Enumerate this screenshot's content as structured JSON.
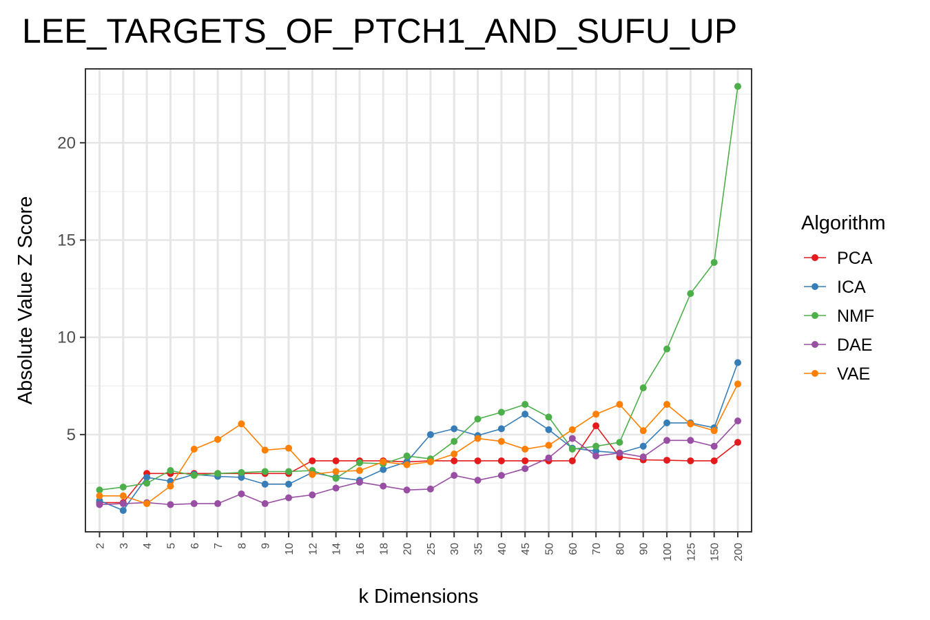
{
  "chart_data": {
    "type": "line",
    "title": "LEE_TARGETS_OF_PTCH1_AND_SUFU_UP",
    "xlabel": "k Dimensions",
    "ylabel": "Absolute Value Z Score",
    "categories": [
      "2",
      "3",
      "4",
      "5",
      "6",
      "7",
      "8",
      "9",
      "10",
      "12",
      "14",
      "16",
      "18",
      "20",
      "25",
      "30",
      "35",
      "40",
      "45",
      "50",
      "60",
      "70",
      "80",
      "90",
      "100",
      "125",
      "150",
      "200"
    ],
    "yticks": [
      5,
      10,
      15,
      20
    ],
    "ylim": [
      0.0,
      23.8
    ],
    "grid": true,
    "legend": {
      "title": "Algorithm",
      "placement": "right"
    },
    "series": [
      {
        "name": "PCA",
        "color": "#E41A1C",
        "values": [
          1.5,
          1.5,
          3.0,
          3.0,
          3.0,
          3.0,
          3.0,
          3.0,
          3.0,
          3.65,
          3.65,
          3.65,
          3.65,
          3.6,
          3.65,
          3.65,
          3.65,
          3.65,
          3.65,
          3.65,
          3.65,
          5.45,
          3.85,
          3.7,
          3.68,
          3.65,
          3.65,
          4.6
        ]
      },
      {
        "name": "ICA",
        "color": "#377EB8",
        "values": [
          1.6,
          1.1,
          2.8,
          2.6,
          2.95,
          2.85,
          2.8,
          2.45,
          2.45,
          3.05,
          2.8,
          2.65,
          3.2,
          3.6,
          5.0,
          5.3,
          4.95,
          5.3,
          6.05,
          5.25,
          4.3,
          4.15,
          4.05,
          4.4,
          5.6,
          5.6,
          5.35,
          8.7
        ]
      },
      {
        "name": "NMF",
        "color": "#4DAF4A",
        "values": [
          2.15,
          2.3,
          2.5,
          3.15,
          2.9,
          3.0,
          3.05,
          3.1,
          3.1,
          3.15,
          2.75,
          3.55,
          3.5,
          3.9,
          3.75,
          4.65,
          5.8,
          6.15,
          6.55,
          5.9,
          4.25,
          4.4,
          4.6,
          7.4,
          9.4,
          12.25,
          13.85,
          22.9
        ]
      },
      {
        "name": "DAE",
        "color": "#984EA3",
        "values": [
          1.4,
          1.45,
          1.5,
          1.4,
          1.45,
          1.45,
          1.95,
          1.45,
          1.75,
          1.9,
          2.25,
          2.55,
          2.35,
          2.15,
          2.2,
          2.9,
          2.65,
          2.9,
          3.25,
          3.8,
          4.8,
          3.9,
          4.05,
          3.85,
          4.7,
          4.7,
          4.4,
          5.7
        ]
      },
      {
        "name": "VAE",
        "color": "#FF7F00",
        "values": [
          1.85,
          1.85,
          1.45,
          2.35,
          4.25,
          4.75,
          5.55,
          4.2,
          4.3,
          2.95,
          3.1,
          3.15,
          3.6,
          3.45,
          3.6,
          4.0,
          4.8,
          4.65,
          4.25,
          4.45,
          5.25,
          6.05,
          6.55,
          5.2,
          6.55,
          5.55,
          5.2,
          7.6
        ]
      }
    ]
  }
}
